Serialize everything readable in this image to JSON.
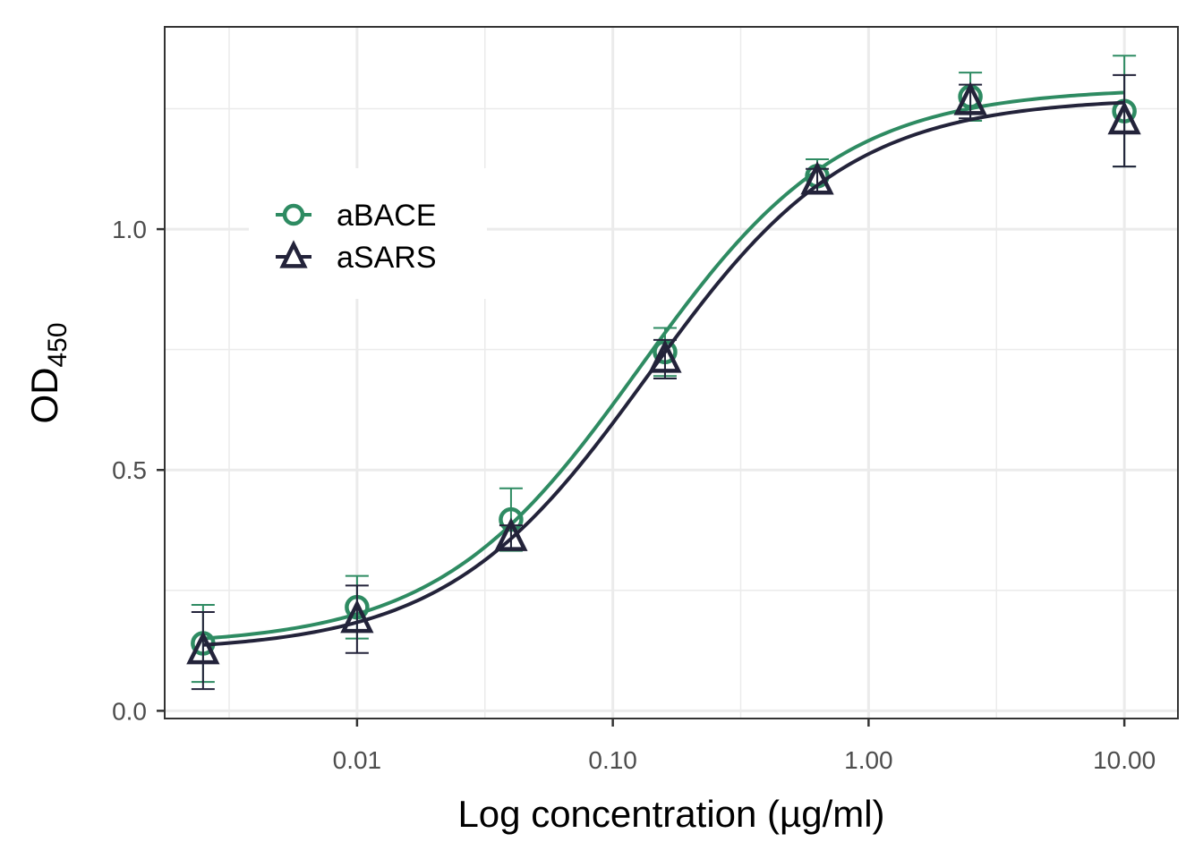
{
  "chart_data": {
    "type": "scatter",
    "xlabel": "Log concentration (µg/ml)",
    "ylabel_main": "OD",
    "ylabel_sub": "450",
    "x_scale": "log10",
    "xlim": [
      0.00177,
      16.2
    ],
    "ylim": [
      -0.016,
      1.42
    ],
    "x_ticks": [
      {
        "value": 0.01,
        "label": "0.01"
      },
      {
        "value": 0.1,
        "label": "0.10"
      },
      {
        "value": 1,
        "label": "1.00"
      },
      {
        "value": 10,
        "label": "10.00"
      }
    ],
    "y_ticks": [
      {
        "value": 0.0,
        "label": "0.0"
      },
      {
        "value": 0.5,
        "label": "0.5"
      },
      {
        "value": 1.0,
        "label": "1.0"
      }
    ],
    "grid": true,
    "legend_position": "top-left",
    "series": [
      {
        "name": "aBACE",
        "color": "#2e8b62",
        "marker": "circle",
        "points": [
          {
            "x": 0.0025,
            "y": 0.14,
            "err": 0.08
          },
          {
            "x": 0.01,
            "y": 0.215,
            "err": 0.065
          },
          {
            "x": 0.04,
            "y": 0.397,
            "err": 0.065
          },
          {
            "x": 0.16,
            "y": 0.745,
            "err": 0.05
          },
          {
            "x": 0.63,
            "y": 1.11,
            "err": 0.035
          },
          {
            "x": 2.5,
            "y": 1.275,
            "err": 0.05
          },
          {
            "x": 10.0,
            "y": 1.245,
            "err": 0.115
          }
        ],
        "fit": {
          "bottom": 0.135,
          "top": 1.293,
          "ec50": 0.128,
          "hill": 1.1
        }
      },
      {
        "name": "aSARS",
        "color": "#23233a",
        "marker": "triangle",
        "points": [
          {
            "x": 0.0025,
            "y": 0.125,
            "err": 0.08
          },
          {
            "x": 0.01,
            "y": 0.19,
            "err": 0.07
          },
          {
            "x": 0.04,
            "y": 0.36,
            "err": 0.025
          },
          {
            "x": 0.16,
            "y": 0.73,
            "err": 0.04
          },
          {
            "x": 0.63,
            "y": 1.1,
            "err": 0.025
          },
          {
            "x": 2.5,
            "y": 1.265,
            "err": 0.035
          },
          {
            "x": 10.0,
            "y": 1.225,
            "err": 0.095
          }
        ],
        "fit": {
          "bottom": 0.123,
          "top": 1.273,
          "ec50": 0.138,
          "hill": 1.1
        }
      }
    ]
  }
}
